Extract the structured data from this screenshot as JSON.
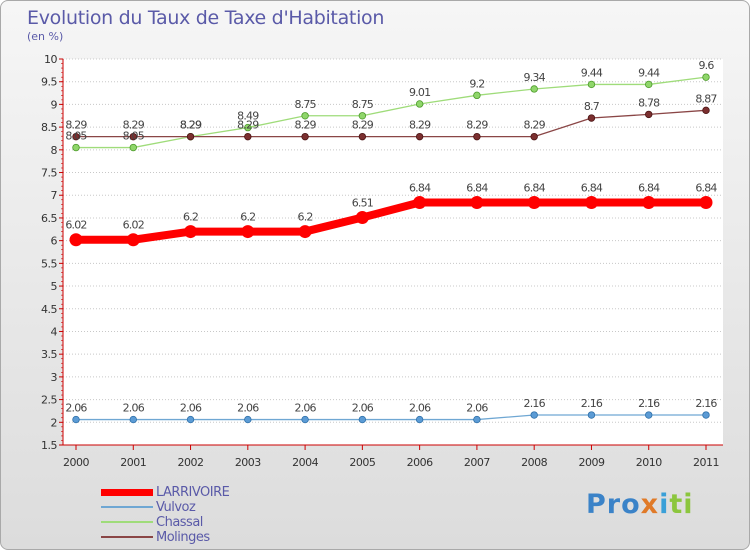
{
  "header": {
    "title": "Evolution du Taux de Taxe d'Habitation",
    "subtitle": "(en %)"
  },
  "logo": {
    "text": "Proxiti",
    "letters": [
      "Pro",
      "x",
      "i",
      "ti"
    ]
  },
  "chart_data": {
    "type": "line",
    "title": "Evolution du Taux de Taxe d'Habitation",
    "ylabel": "(en %)",
    "xlabel": "",
    "x": [
      "2000",
      "2001",
      "2002",
      "2003",
      "2004",
      "2005",
      "2006",
      "2007",
      "2008",
      "2009",
      "2010",
      "2011"
    ],
    "ylim": [
      1.5,
      10
    ],
    "yticks": [
      "1.5",
      "2",
      "2.5",
      "3",
      "3.5",
      "4",
      "4.5",
      "5",
      "5.5",
      "6",
      "6.5",
      "7",
      "7.5",
      "8",
      "8.5",
      "9",
      "9.5",
      "10"
    ],
    "grid": "horizontal dotted",
    "legend_position": "bottom-left",
    "series": [
      {
        "name": "LARRIVOIRE",
        "color": "#ff0000",
        "values": [
          6.02,
          6.02,
          6.2,
          6.2,
          6.2,
          6.51,
          6.84,
          6.84,
          6.84,
          6.84,
          6.84,
          6.84
        ],
        "labels": [
          "6.02",
          "6.02",
          "6.2",
          "6.2",
          "6.2",
          "6.51",
          "6.84",
          "6.84",
          "6.84",
          "6.84",
          "6.84",
          "6.84"
        ]
      },
      {
        "name": "Vulvoz",
        "color": "#5b9bd5",
        "values": [
          2.06,
          2.06,
          2.06,
          2.06,
          2.06,
          2.06,
          2.06,
          2.06,
          2.16,
          2.16,
          2.16,
          2.16
        ],
        "labels": [
          "2.06",
          "2.06",
          "2.06",
          "2.06",
          "2.06",
          "2.06",
          "2.06",
          "2.06",
          "2.16",
          "2.16",
          "2.16",
          "2.16"
        ]
      },
      {
        "name": "Chassal",
        "color": "#8fd66a",
        "values": [
          8.05,
          8.05,
          8.29,
          8.49,
          8.75,
          8.75,
          9.01,
          9.2,
          9.34,
          9.44,
          9.44,
          9.6
        ],
        "labels": [
          "8.05",
          "8.05",
          "8.29",
          "8.49",
          "8.75",
          "8.75",
          "9.01",
          "9.2",
          "9.34",
          "9.44",
          "9.44",
          "9.6"
        ]
      },
      {
        "name": "Molinges",
        "color": "#7b2f2f",
        "values": [
          8.29,
          8.29,
          8.29,
          8.29,
          8.29,
          8.29,
          8.29,
          8.29,
          8.29,
          8.7,
          8.78,
          8.87
        ],
        "labels": [
          "8.29",
          "8.29",
          "8.29",
          "8.29",
          "8.29",
          "8.29",
          "8.29",
          "8.29",
          "8.29",
          "8.7",
          "8.78",
          "8.87"
        ]
      }
    ]
  }
}
